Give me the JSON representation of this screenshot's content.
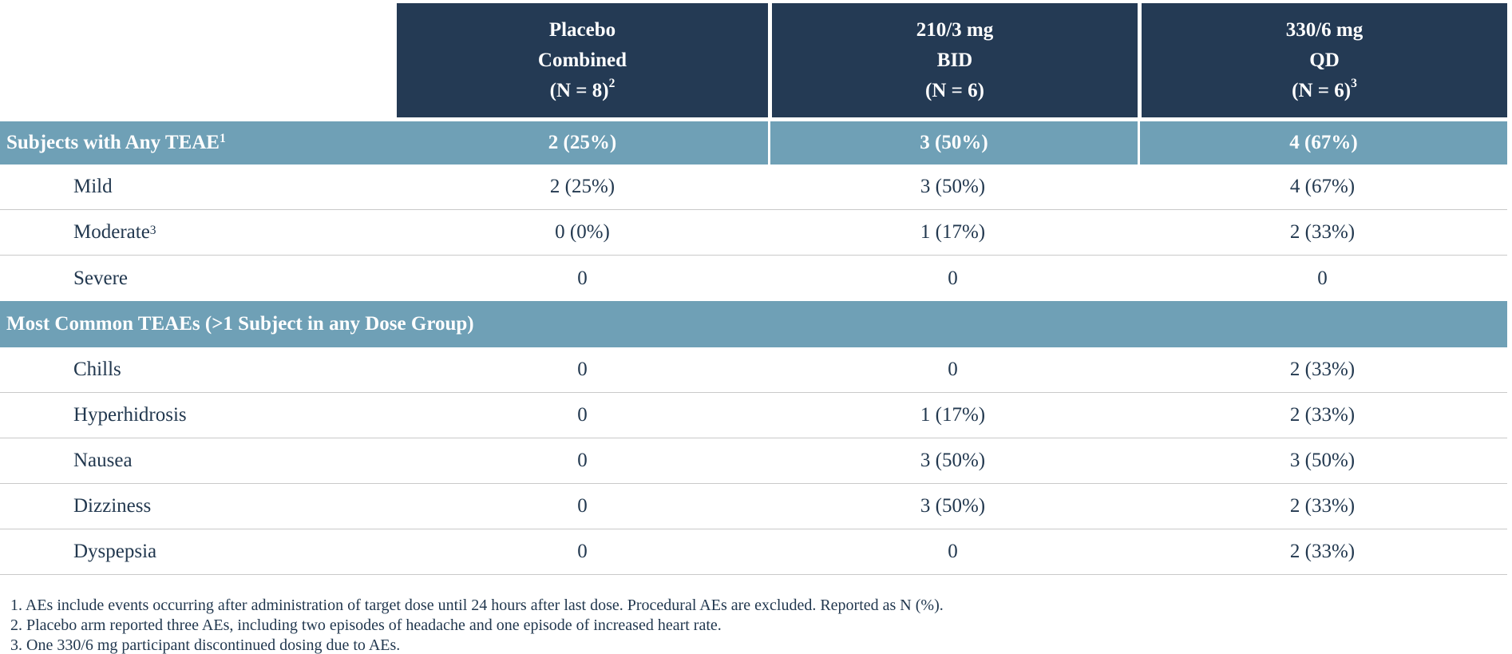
{
  "colors": {
    "header_navy": "#243a54",
    "section_blue": "#6fa0b6",
    "hairline_gray": "#c9c9c9",
    "body_text_navy": "#22384f",
    "header_text": "#ffffff"
  },
  "header": {
    "groups": [
      {
        "line1": "Placebo",
        "line2": "Combined",
        "line3": "(N = 8)",
        "sup": "2"
      },
      {
        "line1": "210/3 mg",
        "line2": "BID",
        "line3": "(N = 6)",
        "sup": ""
      },
      {
        "line1": "330/6 mg",
        "line2": "QD",
        "line3": "(N = 6)",
        "sup": "3"
      }
    ]
  },
  "summary_row": {
    "label": "Subjects with Any TEAE",
    "sup": "1",
    "values": [
      "2 (25%)",
      "3 (50%)",
      "4 (67%)"
    ]
  },
  "severity_rows": [
    {
      "label": "Mild",
      "sup": "",
      "values": [
        "2 (25%)",
        "3 (50%)",
        "4 (67%)"
      ]
    },
    {
      "label": "Moderate",
      "sup": "3",
      "values": [
        "0 (0%)",
        "1 (17%)",
        "2 (33%)"
      ]
    },
    {
      "label": "Severe",
      "sup": "",
      "values": [
        "0",
        "0",
        "0"
      ]
    }
  ],
  "section2": {
    "label": "Most Common TEAEs (>1 Subject in any Dose Group)"
  },
  "teae_rows": [
    {
      "label": "Chills",
      "sup": "",
      "values": [
        "0",
        "0",
        "2 (33%)"
      ]
    },
    {
      "label": "Hyperhidrosis",
      "sup": "",
      "values": [
        "0",
        "1 (17%)",
        "2 (33%)"
      ]
    },
    {
      "label": "Nausea",
      "sup": "",
      "values": [
        "0",
        "3 (50%)",
        "3 (50%)"
      ]
    },
    {
      "label": "Dizziness",
      "sup": "",
      "values": [
        "0",
        "3 (50%)",
        "2 (33%)"
      ]
    },
    {
      "label": "Dyspepsia",
      "sup": "",
      "values": [
        "0",
        "0",
        "2 (33%)"
      ]
    }
  ],
  "footnotes": [
    "1. AEs include events occurring after administration of target dose until 24 hours after last dose. Procedural AEs are excluded. Reported as N (%).",
    "2. Placebo arm reported three AEs, including two episodes of headache and one episode of increased heart rate.",
    "3. One 330/6 mg participant discontinued dosing due to AEs."
  ]
}
